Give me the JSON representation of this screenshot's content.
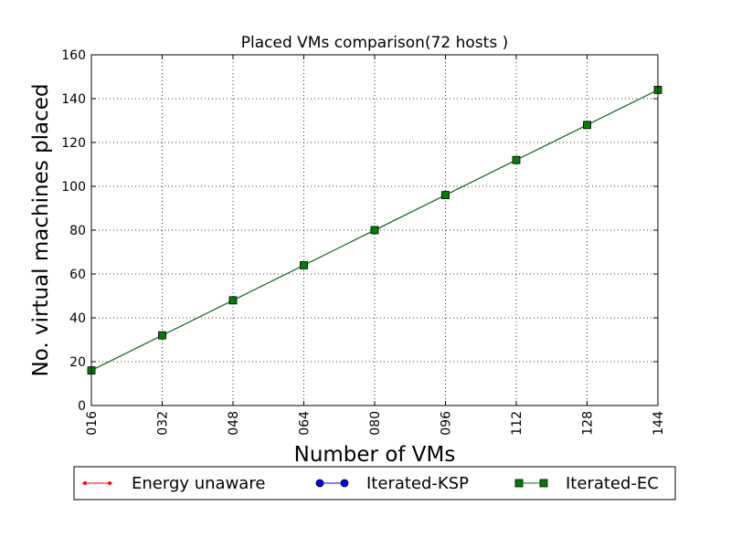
{
  "chart_data": {
    "type": "line",
    "title": "Placed VMs comparison(72 hosts )",
    "xlabel": "Number of VMs",
    "ylabel": "No. virtual machines placed",
    "x": [
      16,
      32,
      48,
      64,
      80,
      96,
      112,
      128,
      144
    ],
    "x_tick_labels": [
      "016",
      "032",
      "048",
      "064",
      "080",
      "096",
      "112",
      "128",
      "144"
    ],
    "xlim": [
      16,
      144
    ],
    "ylim": [
      0,
      160
    ],
    "y_ticks": [
      0,
      20,
      40,
      60,
      80,
      100,
      120,
      140,
      160
    ],
    "grid": true,
    "legend_position": "bottom",
    "series": [
      {
        "name": "Energy unaware",
        "color": "#ff0000",
        "marker": "dot",
        "values": [
          16,
          32,
          48,
          64,
          80,
          96,
          112,
          128,
          144
        ]
      },
      {
        "name": "Iterated-KSP",
        "color": "#0000ff",
        "marker": "circle",
        "values": [
          16,
          32,
          48,
          64,
          80,
          96,
          112,
          128,
          144
        ]
      },
      {
        "name": "Iterated-EC",
        "color": "#008000",
        "marker": "square",
        "values": [
          16,
          32,
          48,
          64,
          80,
          96,
          112,
          128,
          144
        ]
      }
    ]
  }
}
